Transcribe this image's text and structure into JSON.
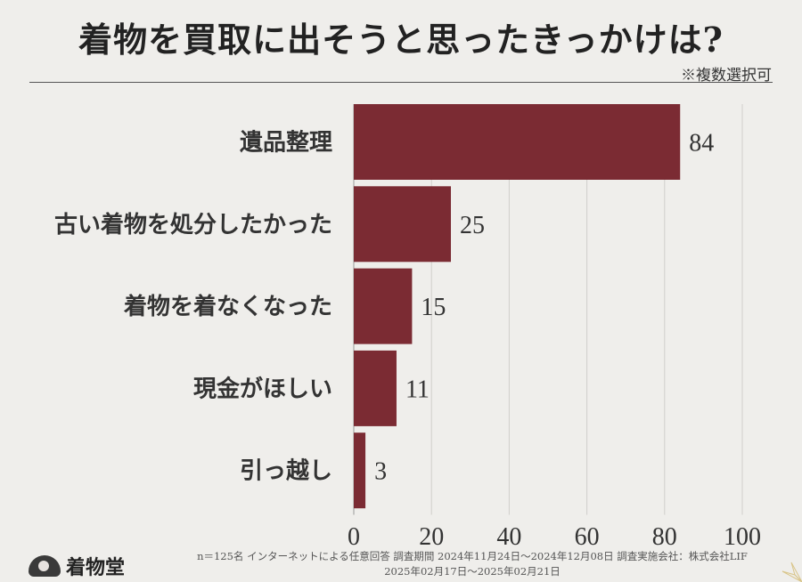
{
  "title": "着物を買取に出そうと思ったきっかけは?",
  "note": "※複数選択可",
  "chart_data": {
    "type": "bar",
    "orientation": "horizontal",
    "categories": [
      "遺品整理",
      "古い着物を処分したかった",
      "着物を着なくなった",
      "現金がほしい",
      "引っ越し"
    ],
    "values": [
      84,
      25,
      15,
      11,
      3
    ],
    "xlim": [
      0,
      100
    ],
    "xticks": [
      "0",
      "20",
      "40",
      "60",
      "80",
      "100"
    ],
    "bar_color": "#7b2b33",
    "grid": true
  },
  "footer": {
    "line1": "n＝125名 インターネットによる任意回答 調査期間 2024年11月24日～2024年12月08日 調査実施会社：株式会社LIF",
    "line2": "2025年02月17日～2025年02月21日"
  },
  "logo": {
    "text": "着物堂",
    "icon": "fan-logo-icon"
  },
  "decoration": {
    "icon": "flower-icon"
  }
}
